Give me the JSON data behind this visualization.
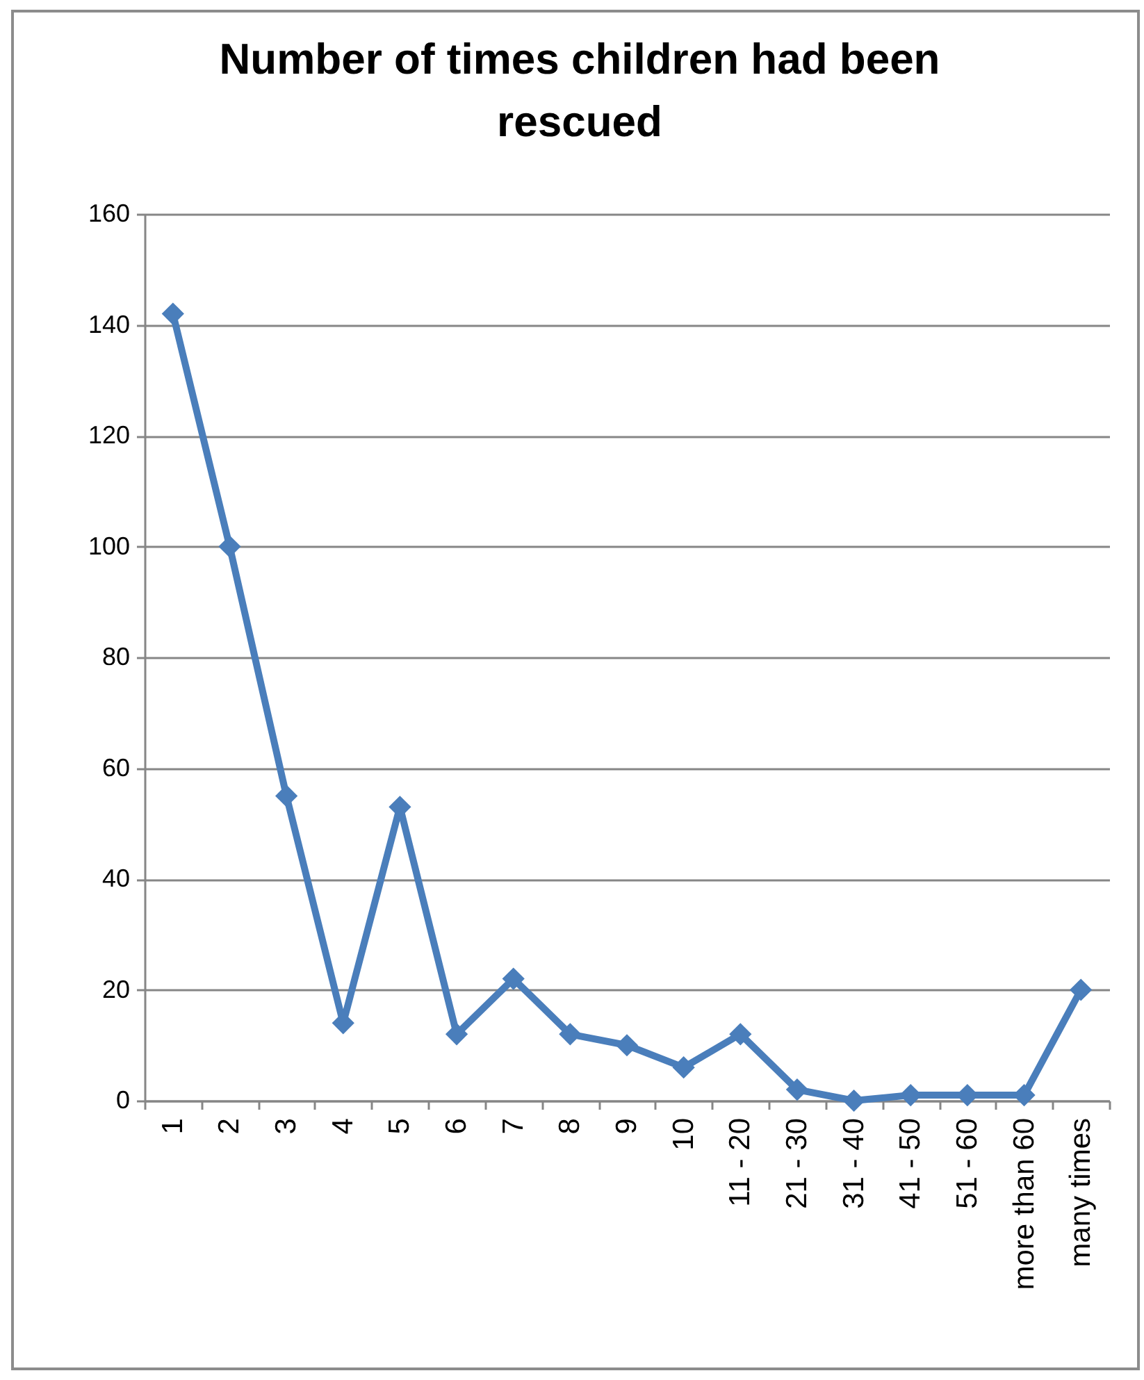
{
  "chart_data": {
    "type": "line",
    "title": "Number of times children had been rescued",
    "categories": [
      "1",
      "2",
      "3",
      "4",
      "5",
      "6",
      "7",
      "8",
      "9",
      "10",
      "11 - 20",
      "21 - 30",
      "31 - 40",
      "41 - 50",
      "51 - 60",
      "more than 60",
      "many times"
    ],
    "series": [
      {
        "color": "#4a7ebb",
        "values": [
          142,
          100,
          55,
          14,
          53,
          12,
          22,
          12,
          10,
          6,
          12,
          2,
          0,
          1,
          1,
          1,
          20
        ]
      }
    ],
    "ylim": [
      0,
      160
    ],
    "yticks": [
      0,
      20,
      40,
      60,
      80,
      100,
      120,
      140,
      160
    ],
    "grid": "y",
    "marker": "diamond"
  }
}
